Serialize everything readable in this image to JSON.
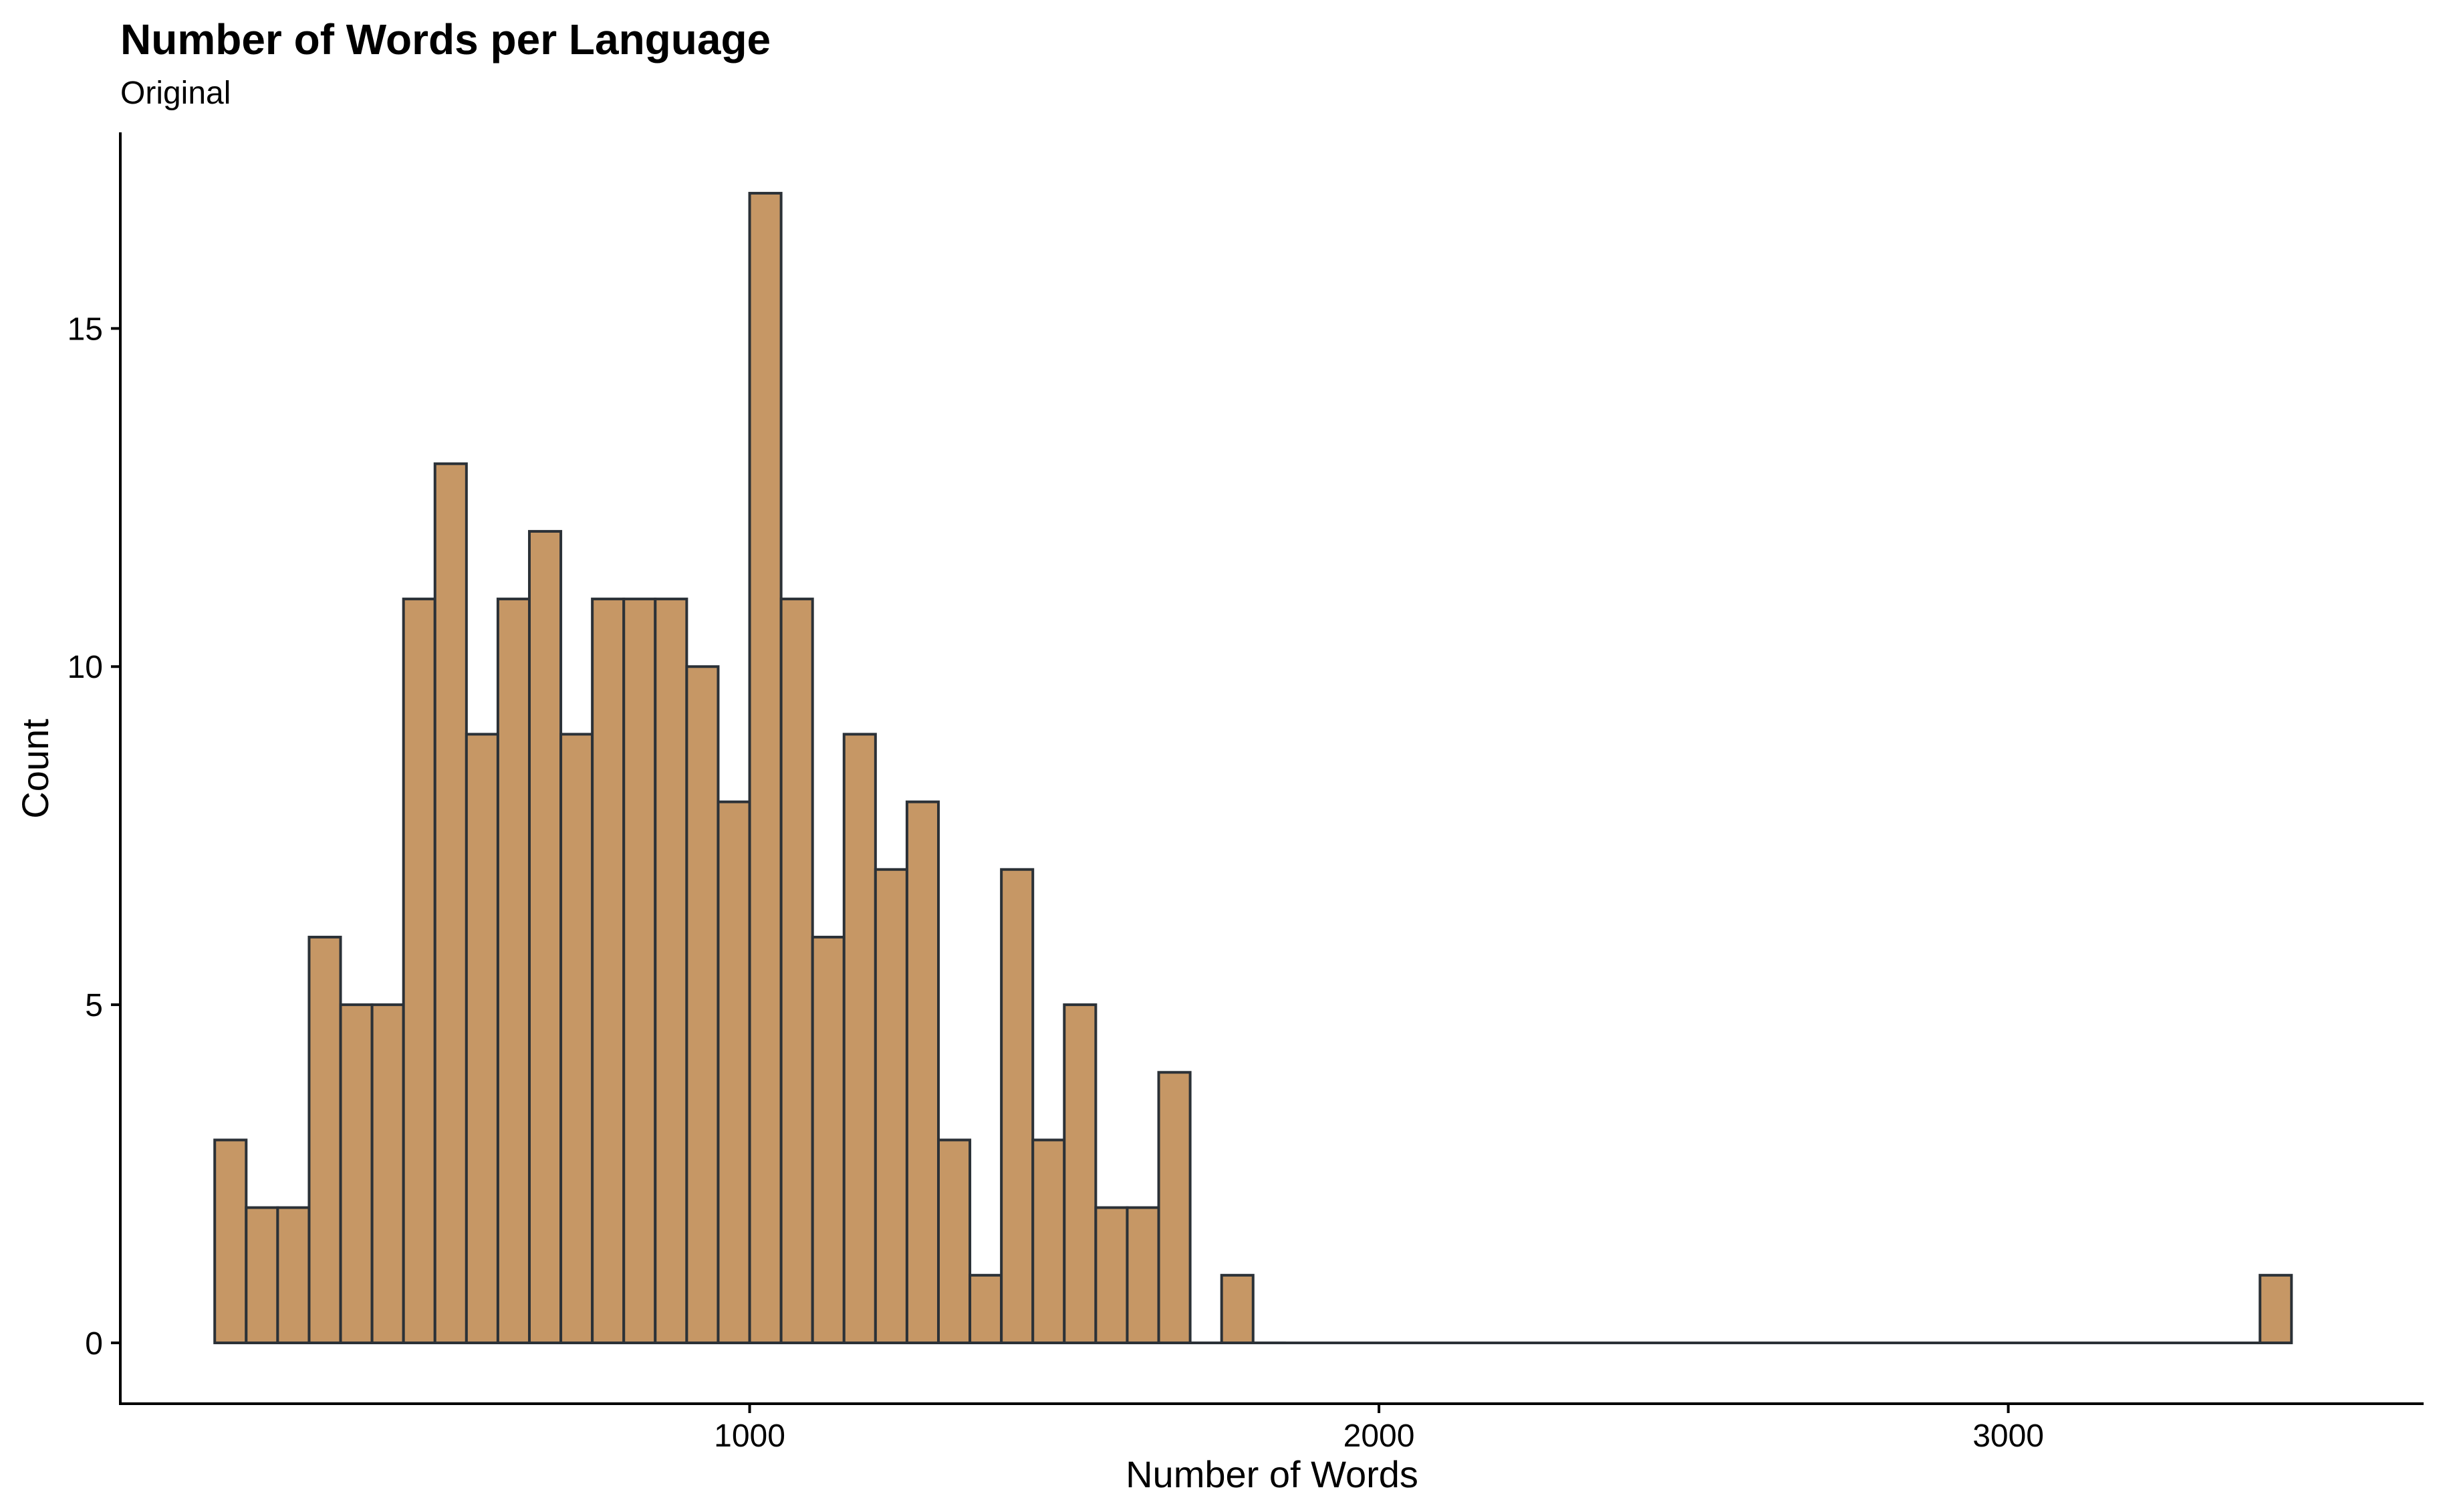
{
  "chart_data": {
    "type": "bar",
    "title": "Number of Words per Language",
    "subtitle": "Original",
    "xlabel": "Number of Words",
    "ylabel": "Count",
    "xlim": [
      0,
      3660
    ],
    "ylim": [
      -0.9,
      17.9
    ],
    "x_ticks": [
      1000,
      2000,
      3000
    ],
    "y_ticks": [
      0,
      5,
      10,
      15
    ],
    "bin_width": 50,
    "bins_from": 150,
    "bins_to": 3450,
    "fill_color": "#C69765",
    "outline_color": "#2B3137",
    "grid": false,
    "legend": "none",
    "bin_centers": [
      175,
      225,
      275,
      325,
      375,
      425,
      475,
      525,
      575,
      625,
      675,
      725,
      775,
      825,
      875,
      925,
      975,
      1025,
      1075,
      1125,
      1175,
      1225,
      1275,
      1325,
      1375,
      1425,
      1475,
      1525,
      1575,
      1625,
      1675,
      1725,
      1775,
      1825,
      3425
    ],
    "counts": [
      3,
      2,
      2,
      6,
      5,
      5,
      11,
      13,
      9,
      11,
      12,
      9,
      11,
      11,
      11,
      10,
      8,
      17,
      11,
      6,
      9,
      7,
      8,
      3,
      1,
      7,
      3,
      5,
      2,
      2,
      4,
      0,
      1,
      0,
      1
    ]
  }
}
